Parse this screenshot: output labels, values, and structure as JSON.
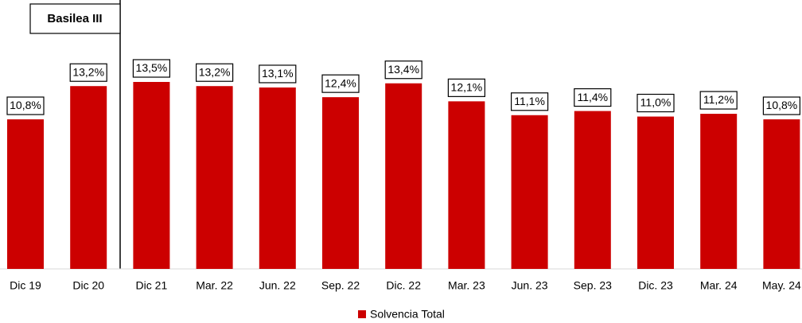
{
  "chart_data": {
    "type": "bar",
    "annotation": "Basilea III",
    "categories": [
      "Dic 19",
      "Dic 20",
      "Dic 21",
      "Mar. 22",
      "Jun. 22",
      "Sep. 22",
      "Dic. 22",
      "Mar. 23",
      "Jun. 23",
      "Sep. 23",
      "Dic. 23",
      "Mar. 24",
      "May. 24"
    ],
    "series": [
      {
        "name": "Solvencia Total",
        "color": "#cc0000",
        "values": [
          10.8,
          13.2,
          13.5,
          13.2,
          13.1,
          12.4,
          13.4,
          12.1,
          11.1,
          11.4,
          11.0,
          11.2,
          10.8
        ],
        "value_labels": [
          "10,8%",
          "13,2%",
          "13,5%",
          "13,2%",
          "13,1%",
          "12,4%",
          "13,4%",
          "12,1%",
          "11,1%",
          "11,4%",
          "11,0%",
          "11,2%",
          "10,8%"
        ]
      }
    ],
    "legend": "bottom"
  }
}
